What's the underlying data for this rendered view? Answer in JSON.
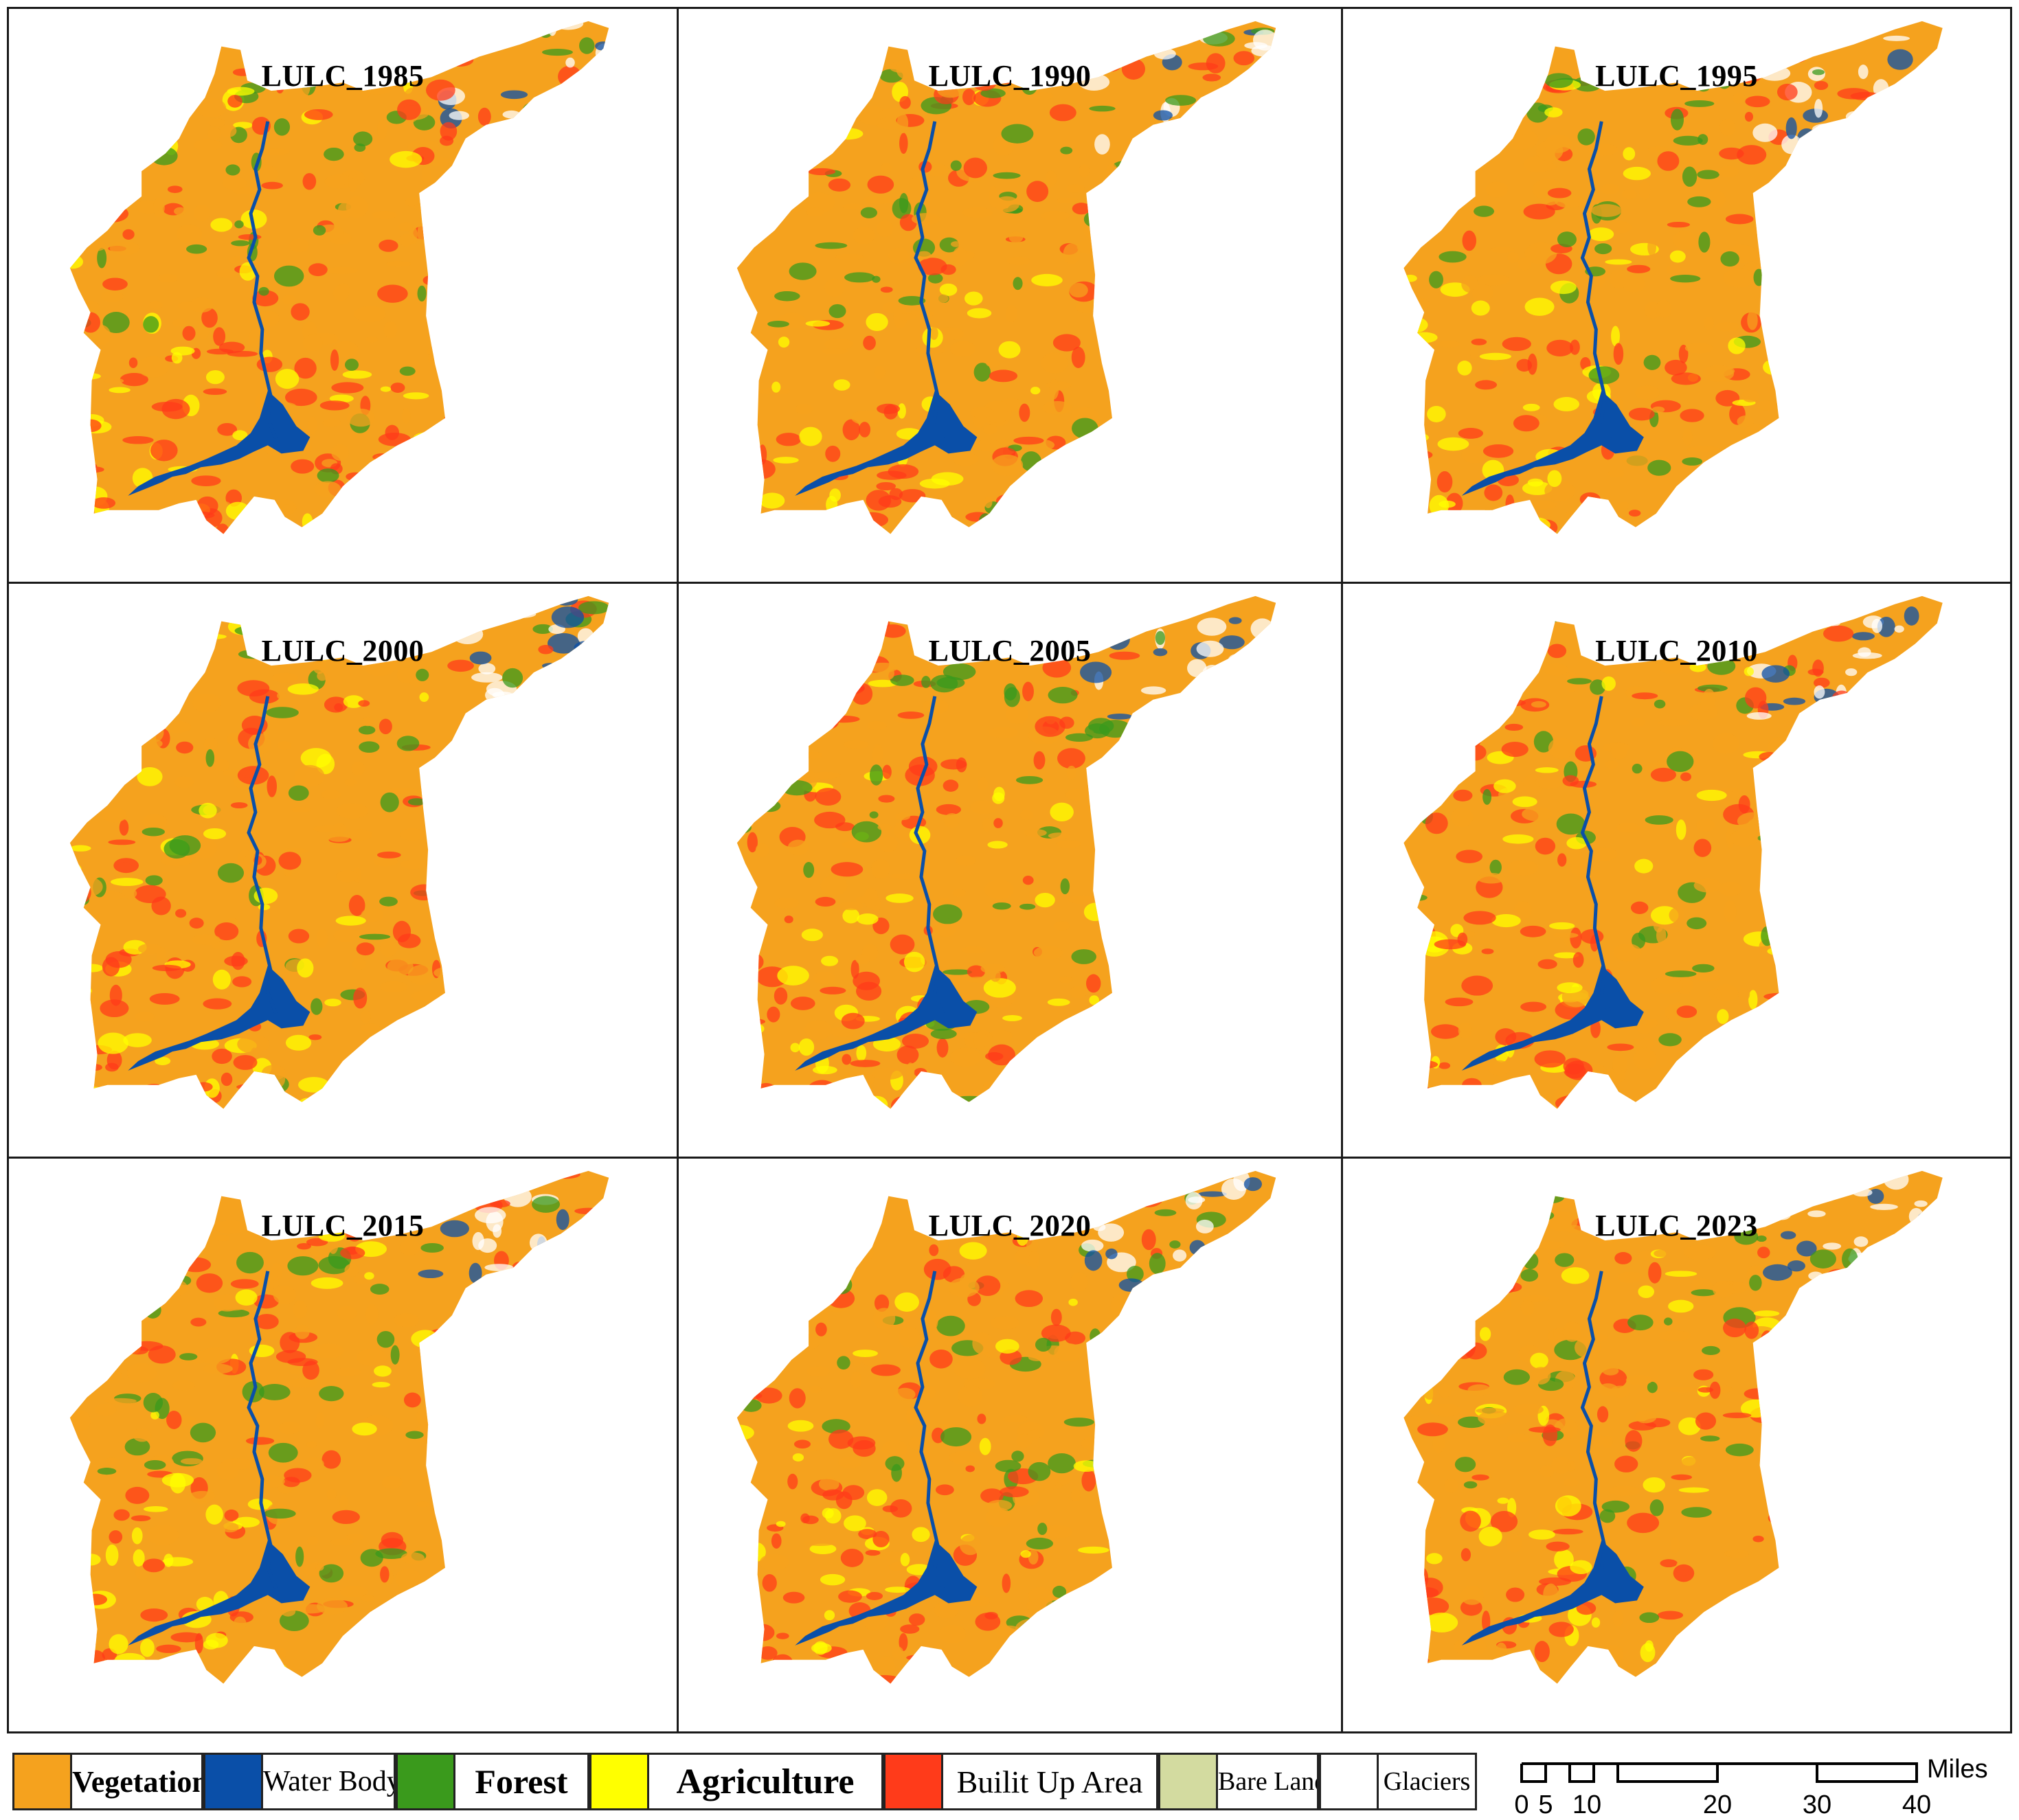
{
  "panels": [
    {
      "title": "LULC_1985"
    },
    {
      "title": "LULC_1990"
    },
    {
      "title": "LULC_1995"
    },
    {
      "title": "LULC_2000"
    },
    {
      "title": "LULC_2005"
    },
    {
      "title": "LULC_2010"
    },
    {
      "title": "LULC_2015"
    },
    {
      "title": "LULC_2020"
    },
    {
      "title": "LULC_2023"
    }
  ],
  "legend": [
    {
      "label": "Vegetation",
      "color": "#f5a21e"
    },
    {
      "label": "Water Body",
      "color": "#0a4fa8"
    },
    {
      "label": "Forest",
      "color": "#3a9a1c"
    },
    {
      "label": "Agriculture",
      "color": "#ffff00"
    },
    {
      "label": "Builit Up Area",
      "color": "#ff3b1a"
    },
    {
      "label": "Bare Land",
      "color": "#d3dba0"
    },
    {
      "label": "Glaciers",
      "color": "#ffffff"
    }
  ],
  "scale": {
    "unit": "Miles",
    "ticks": [
      "0",
      "5",
      "10",
      "20",
      "30",
      "40"
    ]
  }
}
